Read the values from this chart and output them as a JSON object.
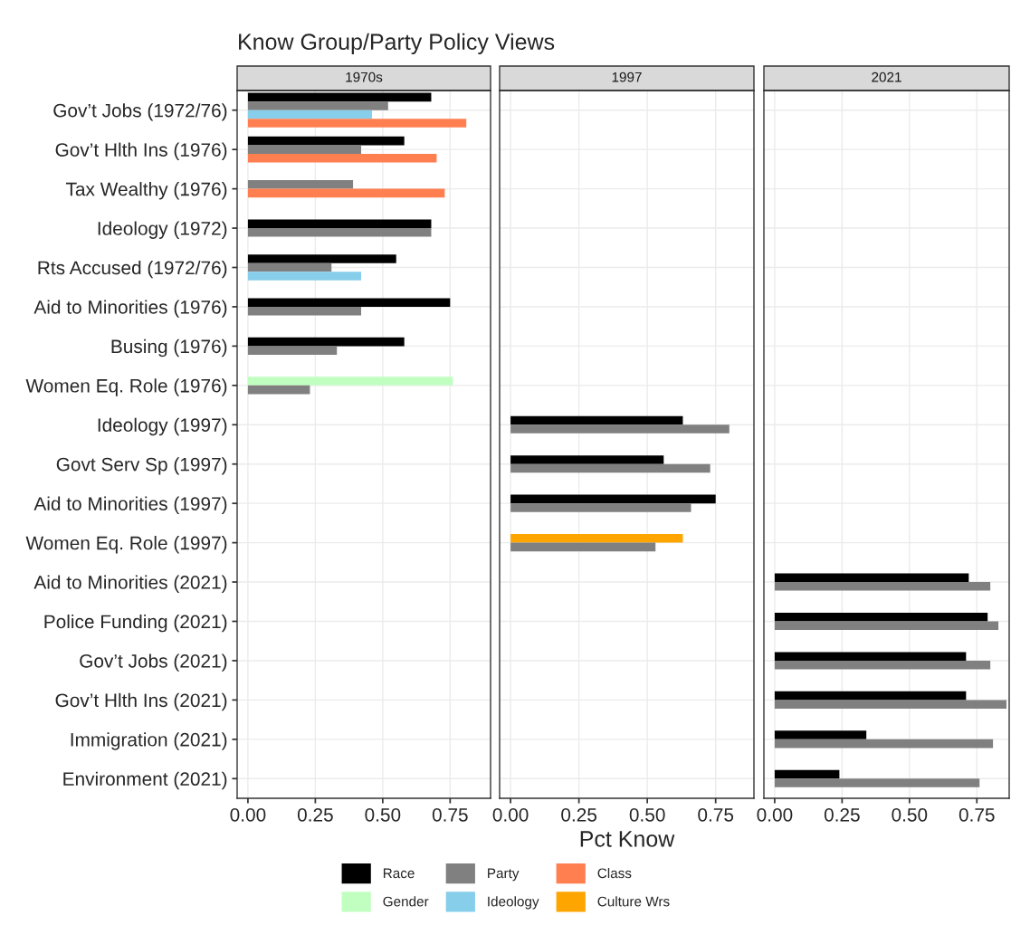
{
  "chart_data": [
    {
      "type": "bar",
      "orientation": "horizontal",
      "title": "Know Group/Party Policy Views",
      "subtitle": "1970s",
      "legend": "bottom",
      "categories": [
        "Gov’t Jobs (1972/76)",
        "Gov’t Hlth Ins (1976)",
        "Tax Wealthy (1976)",
        "Ideology (1972)",
        "Rts Accused (1972/76)",
        "Aid to Minorities (1976)",
        "Busing (1976)",
        "Women Eq. Role (1976)",
        "Ideology (1997)",
        "Govt Serv Sp (1997)",
        "Aid to Minorities (1997)",
        "Women Eq. Role (1997)",
        "Aid to Minorities (2021)",
        "Police Funding (2021)",
        "Gov’t Jobs (2021)",
        "Gov’t Hlth Ins (2021)",
        "Immigration (2021)",
        "Environment (2021)"
      ],
      "series": [
        {
          "name": "Race",
          "color": "#000000",
          "values": [
            0.68,
            0.58,
            null,
            0.68,
            0.55,
            0.75,
            0.58,
            null,
            null,
            null,
            null,
            null,
            null,
            null,
            null,
            null,
            null,
            null
          ]
        },
        {
          "name": "Gender",
          "color": "#c1ffc1",
          "values": [
            null,
            null,
            null,
            null,
            null,
            null,
            null,
            0.76,
            null,
            null,
            null,
            null,
            null,
            null,
            null,
            null,
            null,
            null
          ]
        },
        {
          "name": "Party",
          "color": "#808080",
          "values": [
            0.52,
            0.42,
            0.39,
            0.68,
            0.31,
            0.42,
            0.33,
            0.23,
            null,
            null,
            null,
            null,
            null,
            null,
            null,
            null,
            null,
            null
          ]
        },
        {
          "name": "Ideology",
          "color": "#87ceeb",
          "values": [
            0.46,
            null,
            null,
            null,
            0.42,
            null,
            null,
            null,
            null,
            null,
            null,
            null,
            null,
            null,
            null,
            null,
            null,
            null
          ]
        },
        {
          "name": "Class",
          "color": "#ff7f50",
          "values": [
            0.81,
            0.7,
            0.73,
            null,
            null,
            null,
            null,
            null,
            null,
            null,
            null,
            null,
            null,
            null,
            null,
            null,
            null,
            null
          ]
        }
      ],
      "xlim": [
        -0.04,
        0.9
      ],
      "xticks": [
        {
          "value": 0,
          "label": "0.00"
        },
        {
          "value": 0.25,
          "label": "0.25"
        },
        {
          "value": 0.5,
          "label": "0.50"
        },
        {
          "value": 0.75,
          "label": "0.75"
        }
      ],
      "grid": true
    },
    {
      "type": "bar",
      "orientation": "horizontal",
      "subtitle": "1997",
      "xlabel": "Pct Know",
      "legend": "bottom",
      "tick_labels": "x",
      "categories": [
        null,
        null,
        null,
        null,
        null,
        null,
        null,
        null,
        null,
        null,
        null,
        null,
        null,
        null,
        null,
        null,
        null,
        null
      ],
      "series": [
        {
          "name": "Race",
          "color": "#000000",
          "values": [
            null,
            null,
            null,
            null,
            null,
            null,
            null,
            null,
            0.63,
            0.56,
            0.75,
            null,
            null,
            null,
            null,
            null,
            null,
            null
          ]
        },
        {
          "name": "Culture Wrs",
          "color": "#ffa500",
          "values": [
            null,
            null,
            null,
            null,
            null,
            null,
            null,
            null,
            null,
            null,
            null,
            0.63,
            null,
            null,
            null,
            null,
            null,
            null
          ]
        },
        {
          "name": "Party",
          "color": "#808080",
          "values": [
            null,
            null,
            null,
            null,
            null,
            null,
            null,
            null,
            0.8,
            0.73,
            0.66,
            0.53,
            null,
            null,
            null,
            null,
            null,
            null
          ]
        }
      ],
      "xlim": [
        -0.04,
        0.89
      ],
      "xticks": [
        {
          "value": 0,
          "label": "0.00"
        },
        {
          "value": 0.25,
          "label": "0.25"
        },
        {
          "value": 0.5,
          "label": "0.50"
        },
        {
          "value": 0.75,
          "label": "0.75"
        }
      ],
      "grid": true
    },
    {
      "type": "bar",
      "orientation": "horizontal",
      "subtitle": "2021",
      "tick_labels": "x",
      "legend": "bottom",
      "categories": [
        null,
        null,
        null,
        null,
        null,
        null,
        null,
        null,
        null,
        null,
        null,
        null,
        null,
        null,
        null,
        null,
        null,
        null
      ],
      "series": [
        {
          "name": "Race",
          "color": "#000000",
          "values": [
            null,
            null,
            null,
            null,
            null,
            null,
            null,
            null,
            null,
            null,
            null,
            null,
            0.72,
            0.79,
            0.71,
            0.71,
            0.34,
            0.24
          ]
        },
        {
          "name": "Party",
          "color": "#808080",
          "values": [
            null,
            null,
            null,
            null,
            null,
            null,
            null,
            null,
            null,
            null,
            null,
            null,
            0.8,
            0.83,
            0.8,
            0.86,
            0.81,
            0.76
          ]
        }
      ],
      "xlim": [
        -0.04,
        0.87
      ],
      "xticks": [
        {
          "value": 0,
          "label": "0.00"
        },
        {
          "value": 0.25,
          "label": "0.25"
        },
        {
          "value": 0.5,
          "label": "0.50"
        },
        {
          "value": 0.75,
          "label": "0.75"
        }
      ],
      "grid": true
    }
  ]
}
